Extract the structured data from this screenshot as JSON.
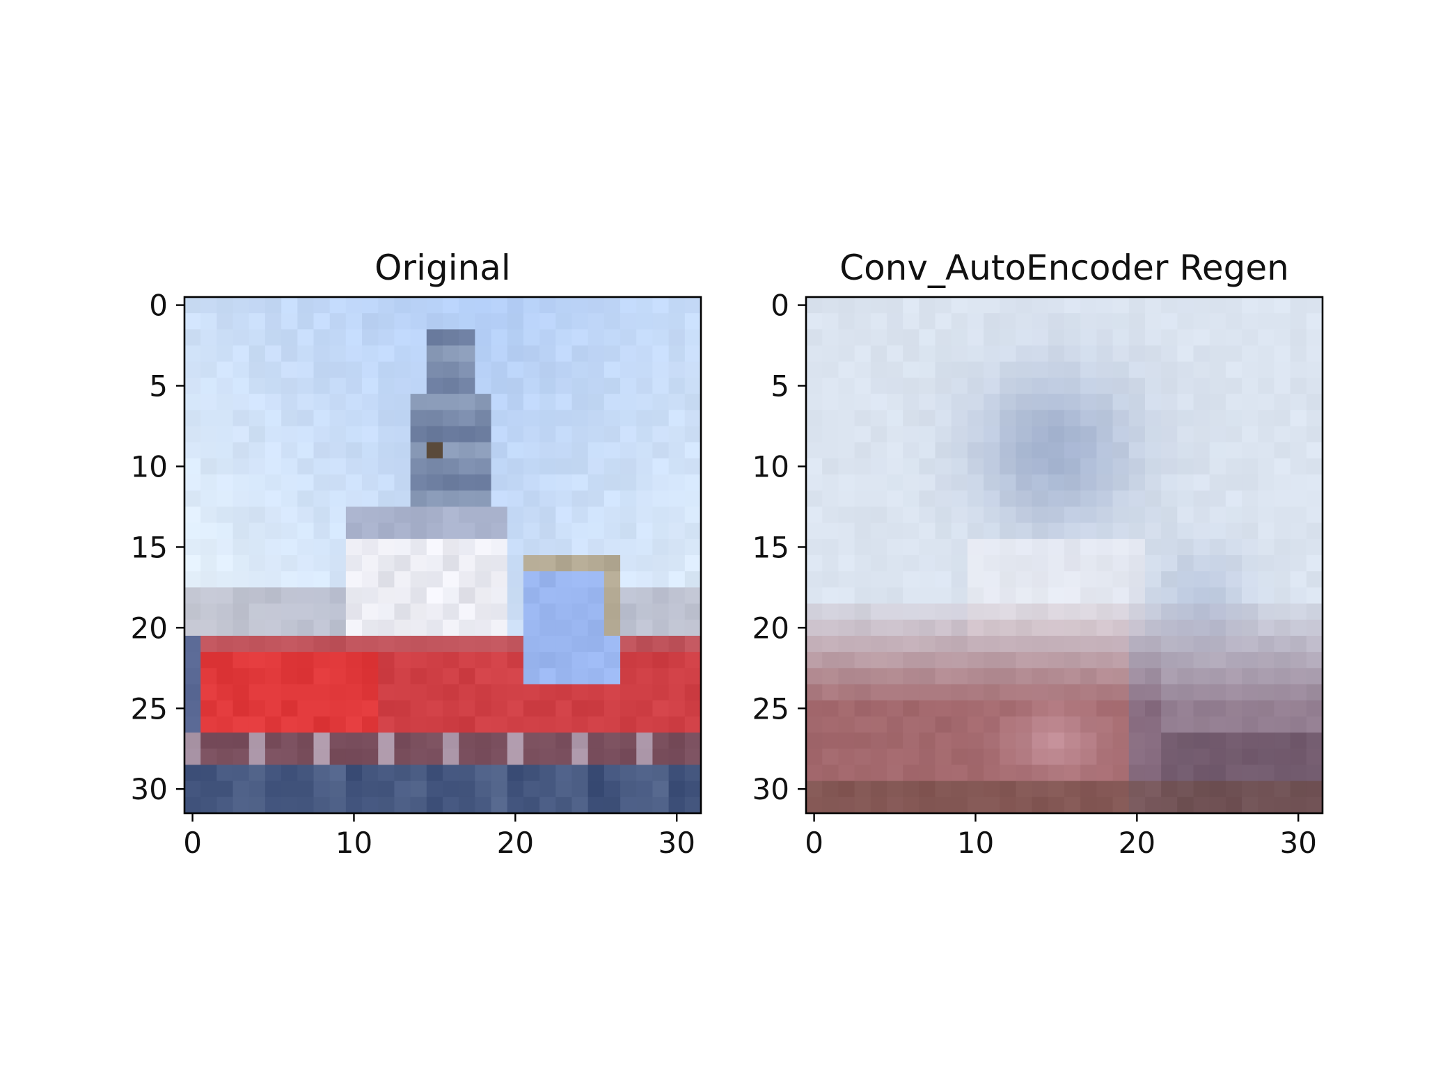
{
  "chart_data": [
    {
      "type": "heatmap",
      "title": "Original",
      "xlabel": "",
      "ylabel": "",
      "xlim": [
        -0.5,
        31.5
      ],
      "ylim": [
        31.5,
        -0.5
      ],
      "xticks": [
        0,
        10,
        20,
        30
      ],
      "yticks": [
        0,
        5,
        10,
        15,
        20,
        25,
        30
      ],
      "grid": false,
      "image_size": [
        32,
        32
      ],
      "description_colors": {
        "sky": "#c3dbf5",
        "hull_red": "#d8383a",
        "superstructure_white": "#eeeef5",
        "water": "#3e5278"
      }
    },
    {
      "type": "heatmap",
      "title": "Conv_AutoEncoder Regen",
      "xlabel": "",
      "ylabel": "",
      "xlim": [
        -0.5,
        31.5
      ],
      "ylim": [
        31.5,
        -0.5
      ],
      "xticks": [
        0,
        10,
        20,
        30
      ],
      "yticks": [
        0,
        5,
        10,
        15,
        20,
        25,
        30
      ],
      "grid": false,
      "image_size": [
        32,
        32
      ],
      "description_colors": {
        "sky": "#dde6f1",
        "hull_red": "#9a5b62",
        "superstructure_white": "#e8e6ee",
        "water": "#6f4f5c"
      }
    }
  ]
}
